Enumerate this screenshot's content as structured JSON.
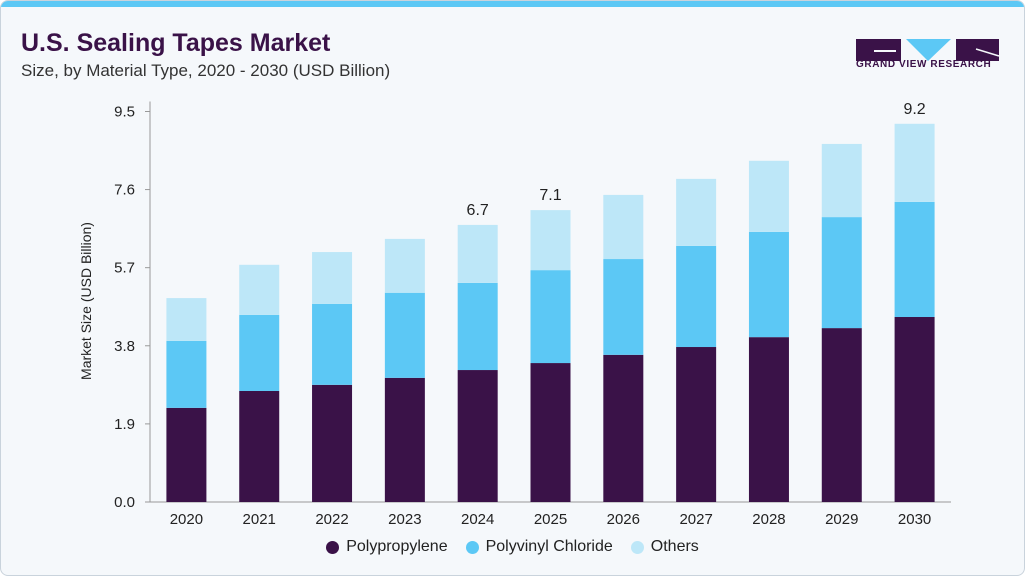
{
  "header": {
    "title": "U.S. Sealing Tapes Market",
    "subtitle": "Size, by Material Type, 2020 - 2030 (USD Billion)"
  },
  "logo": {
    "text": "GRAND VIEW RESEARCH"
  },
  "chart_data": {
    "type": "bar",
    "stacked": true,
    "title": "U.S. Sealing Tapes Market",
    "subtitle": "Size, by Material Type, 2020 - 2030 (USD Billion)",
    "ylabel": "Market Size (USD Billion)",
    "xlabel": "",
    "yticks": [
      "0.0",
      "1.9",
      "3.8",
      "5.7",
      "7.6",
      "9.5"
    ],
    "ylim": [
      0,
      9.73
    ],
    "grid": false,
    "legend": "bottom",
    "categories": [
      "2020",
      "2021",
      "2022",
      "2023",
      "2024",
      "2025",
      "2026",
      "2027",
      "2028",
      "2029",
      "2030"
    ],
    "series": [
      {
        "name": "Polypropylene",
        "color": "#3a1248",
        "values": [
          2.29,
          2.7,
          2.85,
          3.02,
          3.21,
          3.38,
          3.58,
          3.77,
          4.01,
          4.23,
          4.5
        ]
      },
      {
        "name": "Polyvinyl Chloride",
        "color": "#5cc8f5",
        "values": [
          1.63,
          1.85,
          1.97,
          2.07,
          2.12,
          2.26,
          2.33,
          2.46,
          2.56,
          2.7,
          2.8
        ]
      },
      {
        "name": "Others",
        "color": "#bde7f8",
        "values": [
          1.04,
          1.22,
          1.26,
          1.31,
          1.41,
          1.46,
          1.56,
          1.63,
          1.73,
          1.78,
          1.9
        ]
      }
    ],
    "data_labels": [
      {
        "category": "2024",
        "label": "6.7"
      },
      {
        "category": "2025",
        "label": "7.1"
      },
      {
        "category": "2030",
        "label": "9.2"
      }
    ]
  }
}
